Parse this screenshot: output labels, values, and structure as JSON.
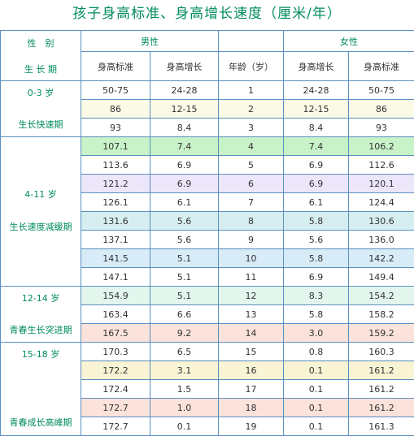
{
  "title": "孩子身高标准、身高增长速度（厘米/年）",
  "header": {
    "gender_label": "性　别",
    "period_label": "生 长 期",
    "male": "男性",
    "female": "女性",
    "col_height": "身高标准",
    "col_growth": "身高增长",
    "col_age": "年龄（岁）"
  },
  "groups": [
    {
      "age_range": "0-3 岁",
      "phase": "生长快速期"
    },
    {
      "age_range": "4-11 岁",
      "phase": "生长速度减缓期"
    },
    {
      "age_range": "12-14 岁",
      "phase": "青春生长突进期"
    },
    {
      "age_range": "15-18 岁",
      "phase": "青春成长高峰期"
    }
  ],
  "rows": [
    {
      "m_h": "50-75",
      "m_g": "24-28",
      "age": "1",
      "f_g": "24-28",
      "f_h": "50-75"
    },
    {
      "m_h": "86",
      "m_g": "12-15",
      "age": "2",
      "f_g": "12-15",
      "f_h": "86"
    },
    {
      "m_h": "93",
      "m_g": "8.4",
      "age": "3",
      "f_g": "8.4",
      "f_h": "93"
    },
    {
      "m_h": "107.1",
      "m_g": "7.4",
      "age": "4",
      "f_g": "7.4",
      "f_h": "106.2"
    },
    {
      "m_h": "113.6",
      "m_g": "6.9",
      "age": "5",
      "f_g": "6.9",
      "f_h": "112.6"
    },
    {
      "m_h": "121.2",
      "m_g": "6.9",
      "age": "6",
      "f_g": "6.9",
      "f_h": "120.1"
    },
    {
      "m_h": "126.1",
      "m_g": "6.1",
      "age": "7",
      "f_g": "6.1",
      "f_h": "124.4"
    },
    {
      "m_h": "131.6",
      "m_g": "5.6",
      "age": "8",
      "f_g": "5.8",
      "f_h": "130.6"
    },
    {
      "m_h": "137.1",
      "m_g": "5.6",
      "age": "9",
      "f_g": "5.6",
      "f_h": "136.0"
    },
    {
      "m_h": "141.5",
      "m_g": "5.1",
      "age": "10",
      "f_g": "5.8",
      "f_h": "142.2"
    },
    {
      "m_h": "147.1",
      "m_g": "5.1",
      "age": "11",
      "f_g": "6.9",
      "f_h": "149.4"
    },
    {
      "m_h": "154.9",
      "m_g": "5.1",
      "age": "12",
      "f_g": "8.3",
      "f_h": "154.2"
    },
    {
      "m_h": "163.4",
      "m_g": "6.6",
      "age": "13",
      "f_g": "5.8",
      "f_h": "158.2"
    },
    {
      "m_h": "167.5",
      "m_g": "9.2",
      "age": "14",
      "f_g": "3.0",
      "f_h": "159.2"
    },
    {
      "m_h": "170.3",
      "m_g": "6.5",
      "age": "15",
      "f_g": "0.8",
      "f_h": "160.3"
    },
    {
      "m_h": "172.2",
      "m_g": "3.1",
      "age": "16",
      "f_g": "0.1",
      "f_h": "161.2"
    },
    {
      "m_h": "172.4",
      "m_g": "1.5",
      "age": "17",
      "f_g": "0.1",
      "f_h": "161.2"
    },
    {
      "m_h": "172.7",
      "m_g": "1.0",
      "age": "18",
      "f_g": "0.1",
      "f_h": "161.2"
    },
    {
      "m_h": "172.7",
      "m_g": "0.1",
      "age": "19",
      "f_g": "0.1",
      "f_h": "161.3"
    }
  ],
  "row_colors": [
    "",
    "#fafae6",
    "",
    "#c8f2c8",
    "",
    "#ece6fa",
    "",
    "#d6eef0",
    "",
    "#d8ecf8",
    "",
    "#e2f6ee",
    "",
    "#fbe2da",
    "",
    "#f8f4d4",
    "",
    "#fbe2da",
    ""
  ]
}
